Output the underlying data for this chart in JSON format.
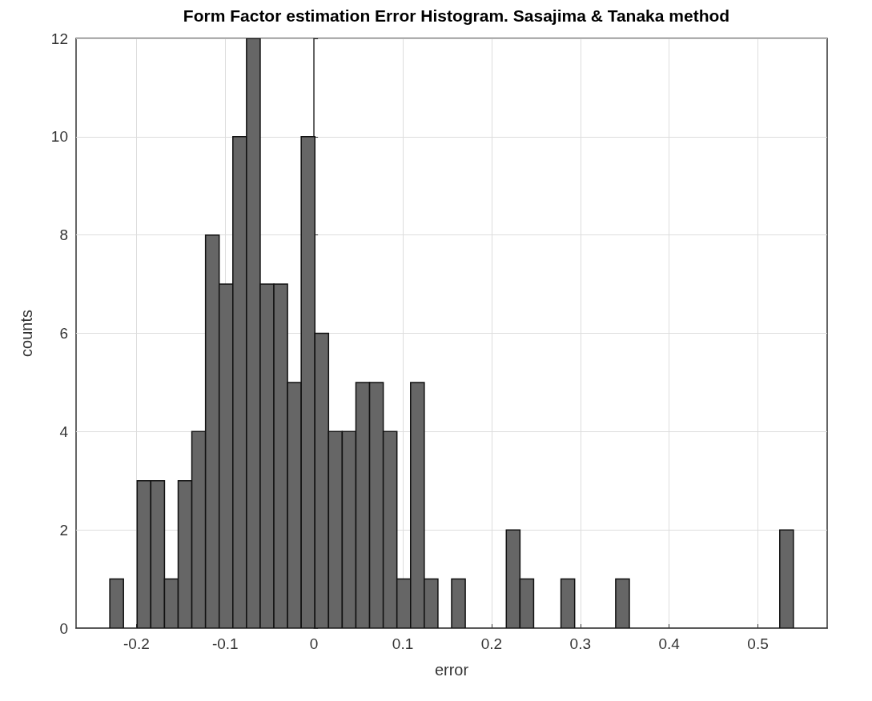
{
  "chart_data": {
    "type": "histogram",
    "title": "Form Factor estimation Error Histogram. Sasajima & Tanaka method",
    "xlabel": "error",
    "ylabel": "counts",
    "bins": [
      -0.23,
      -0.2146,
      -0.1992,
      -0.1838,
      -0.1684,
      -0.153,
      -0.1376,
      -0.1222,
      -0.1068,
      -0.0914,
      -0.076,
      -0.0606,
      -0.0452,
      -0.0298,
      -0.0144,
      0.001,
      0.0164,
      0.0318,
      0.0472,
      0.0626,
      0.078,
      0.0934,
      0.1088,
      0.1242,
      0.1396,
      0.155,
      0.1704,
      0.1858,
      0.2012,
      0.2166,
      0.232,
      0.2474,
      0.2628,
      0.2782,
      0.2936,
      0.309,
      0.3244,
      0.3398,
      0.3552,
      0.3706,
      0.386,
      0.4014,
      0.4168,
      0.4322,
      0.4476,
      0.463,
      0.4784,
      0.4938,
      0.5092,
      0.5246,
      0.54
    ],
    "values": [
      1,
      0,
      3,
      3,
      1,
      3,
      4,
      8,
      7,
      10,
      12,
      7,
      7,
      5,
      10,
      6,
      4,
      4,
      5,
      5,
      4,
      1,
      5,
      1,
      0,
      1,
      0,
      0,
      0,
      2,
      1,
      0,
      0,
      1,
      0,
      0,
      0,
      1,
      0,
      0,
      0,
      0,
      0,
      0,
      0,
      0,
      0,
      0,
      0,
      2
    ],
    "color": "#666666",
    "xlim": [
      -0.268,
      0.578
    ],
    "xticks": [
      -0.2,
      -0.1,
      0,
      0.1,
      0.2,
      0.3,
      0.4,
      0.5
    ],
    "ylim": [
      0,
      12
    ],
    "yticks": [
      0,
      2,
      4,
      6,
      8,
      10,
      12
    ],
    "grid": true
  }
}
